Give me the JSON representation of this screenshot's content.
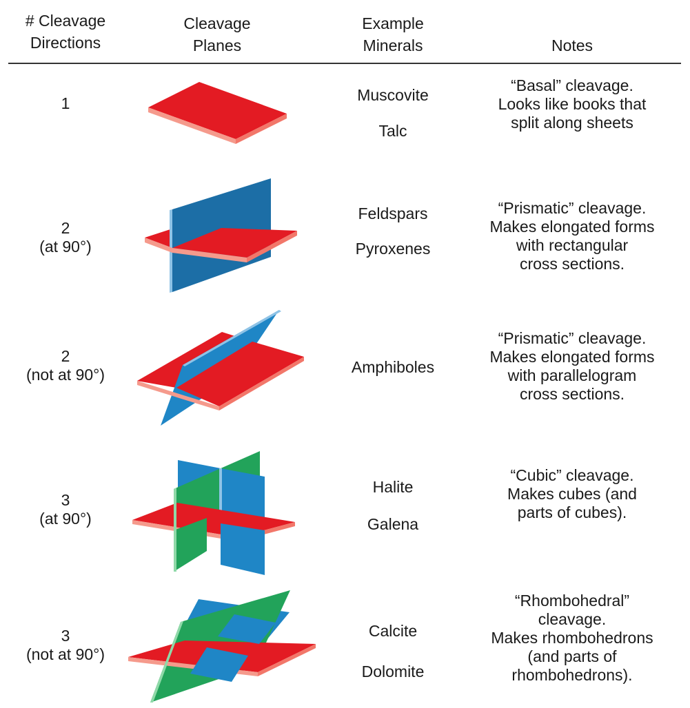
{
  "header": {
    "directions": [
      "# Cleavage",
      "Directions"
    ],
    "planes": [
      "Cleavage",
      "Planes"
    ],
    "minerals": [
      "Example",
      "Minerals"
    ],
    "notes": [
      "Notes"
    ]
  },
  "colors": {
    "red": "#e31b23",
    "red_edge": "#f59a8c",
    "blue": "#1c6ea6",
    "blue_edge": "#8fc3e6",
    "green": "#22a35a",
    "green_edge": "#8fd9a8"
  },
  "rows": [
    {
      "directions": [
        "1"
      ],
      "minerals": [
        "Muscovite",
        "Talc"
      ],
      "notes": [
        "“Basal” cleavage.",
        "Looks like books that",
        "split along sheets"
      ],
      "planes_icon": "basal-cleavage-icon"
    },
    {
      "directions": [
        "2",
        "(at 90°)"
      ],
      "minerals": [
        "Feldspars",
        "Pyroxenes"
      ],
      "notes": [
        "“Prismatic” cleavage.",
        "Makes elongated forms",
        "with rectangular",
        "cross sections."
      ],
      "planes_icon": "prismatic-90-cleavage-icon"
    },
    {
      "directions": [
        "2",
        "(not at 90°)"
      ],
      "minerals": [
        "Amphiboles"
      ],
      "notes": [
        "“Prismatic” cleavage.",
        "Makes elongated forms",
        "with parallelogram",
        "cross sections."
      ],
      "planes_icon": "prismatic-oblique-cleavage-icon"
    },
    {
      "directions": [
        "3",
        "(at 90°)"
      ],
      "minerals": [
        "Halite",
        "Galena"
      ],
      "notes": [
        "“Cubic” cleavage.",
        "Makes cubes (and",
        "parts of cubes)."
      ],
      "planes_icon": "cubic-cleavage-icon"
    },
    {
      "directions": [
        "3",
        "(not at 90°)"
      ],
      "minerals": [
        "Calcite",
        "Dolomite"
      ],
      "notes": [
        "“Rhombohedral”",
        "cleavage.",
        "Makes rhombohedrons",
        "(and parts of",
        "rhombohedrons)."
      ],
      "planes_icon": "rhombohedral-cleavage-icon"
    }
  ]
}
